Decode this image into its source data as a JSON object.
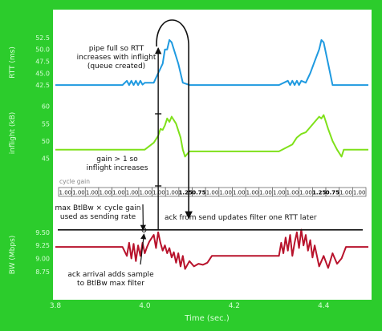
{
  "theme": {
    "frame_bg": "#2ccc2c",
    "panel_bg": "#ffffff",
    "axis_text": "#d8ffd8",
    "rtt_color": "#1f9ae0",
    "inflight_color": "#7fe11a",
    "bw_color": "#b8132c",
    "annotation_color": "#111111"
  },
  "chart_data": [
    {
      "type": "line",
      "panel": "rtt",
      "ylabel": "RTT (ms)",
      "yticks": [
        42.5,
        45.0,
        47.5,
        50.0,
        52.5
      ],
      "ylim": [
        40.5,
        54
      ],
      "series": [
        {
          "color": "#1f9ae0",
          "x": [
            3.8,
            3.95,
            3.96,
            3.965,
            3.97,
            3.975,
            3.98,
            3.985,
            3.99,
            3.995,
            4.0,
            4.01,
            4.02,
            4.03,
            4.04,
            4.045,
            4.05,
            4.055,
            4.06,
            4.075,
            4.085,
            4.1,
            4.3,
            4.32,
            4.325,
            4.33,
            4.335,
            4.34,
            4.345,
            4.35,
            4.36,
            4.37,
            4.38,
            4.39,
            4.395,
            4.4,
            4.41,
            4.42,
            4.5
          ],
          "y": [
            42.5,
            42.5,
            43.4,
            42.5,
            43.4,
            42.5,
            43.4,
            42.5,
            43.4,
            42.6,
            43.0,
            43.0,
            43.0,
            45.0,
            47.0,
            50.0,
            50.0,
            52.0,
            51.5,
            47.0,
            43.0,
            42.5,
            42.5,
            43.4,
            42.5,
            43.4,
            42.5,
            43.4,
            42.5,
            43.4,
            43.0,
            45.0,
            47.5,
            50.0,
            52.0,
            51.5,
            47.0,
            42.5,
            42.5
          ]
        }
      ]
    },
    {
      "type": "line",
      "panel": "inflight",
      "ylabel": "inflight (kB)",
      "yticks": [
        45,
        50,
        55,
        60
      ],
      "ylim": [
        43.5,
        62
      ],
      "series": [
        {
          "color": "#7fe11a",
          "x": [
            3.8,
            4.0,
            4.02,
            4.025,
            4.03,
            4.035,
            4.04,
            4.045,
            4.05,
            4.055,
            4.06,
            4.07,
            4.08,
            4.085,
            4.09,
            4.1,
            4.3,
            4.33,
            4.34,
            4.35,
            4.36,
            4.37,
            4.38,
            4.39,
            4.395,
            4.4,
            4.405,
            4.41,
            4.42,
            4.43,
            4.44,
            4.445,
            4.5
          ],
          "y": [
            47.5,
            47.5,
            49.5,
            50.5,
            51.5,
            53.5,
            53.2,
            54.5,
            56.5,
            55.5,
            57.0,
            55.0,
            51.0,
            47.5,
            45.5,
            47.0,
            47.0,
            49.0,
            51.0,
            52.0,
            52.5,
            54.0,
            55.5,
            57.0,
            56.5,
            57.5,
            55.5,
            53.5,
            50.0,
            47.5,
            45.5,
            47.5,
            47.5
          ]
        }
      ]
    },
    {
      "type": "table",
      "panel": "cycle_gain",
      "label": "cycle gain",
      "values": [
        "1.00",
        "1.00",
        "1.00",
        "1.00",
        "1.00",
        "1.00",
        "1.00",
        "1.00",
        "1.00",
        "1.25",
        "0.75",
        "1.00",
        "1.00",
        "1.00",
        "1.00",
        "1.00",
        "1.00",
        "1.00",
        "1.00",
        "1.25",
        "0.75",
        "1.00",
        "1.00"
      ]
    },
    {
      "type": "line",
      "panel": "bw",
      "ylabel": "BW (Mbps)",
      "yticks": [
        8.75,
        9.0,
        9.25,
        9.5
      ],
      "ylim": [
        8.55,
        9.65
      ],
      "reference_line_y": 9.5,
      "series": [
        {
          "color": "#b8132c",
          "x": [
            3.8,
            3.95,
            3.96,
            3.965,
            3.97,
            3.975,
            3.98,
            3.985,
            3.99,
            3.995,
            4.0,
            4.005,
            4.01,
            4.02,
            4.025,
            4.03,
            4.035,
            4.04,
            4.045,
            4.05,
            4.055,
            4.06,
            4.065,
            4.07,
            4.075,
            4.08,
            4.085,
            4.09,
            4.1,
            4.11,
            4.12,
            4.13,
            4.14,
            4.15,
            4.3,
            4.305,
            4.31,
            4.315,
            4.32,
            4.325,
            4.33,
            4.335,
            4.34,
            4.345,
            4.35,
            4.355,
            4.36,
            4.365,
            4.37,
            4.375,
            4.38,
            4.39,
            4.4,
            4.41,
            4.42,
            4.43,
            4.44,
            4.45,
            4.5
          ],
          "y": [
            9.22,
            9.22,
            9.05,
            9.3,
            9.0,
            9.28,
            8.95,
            9.25,
            9.05,
            9.3,
            9.1,
            9.22,
            9.32,
            9.45,
            9.2,
            9.5,
            9.3,
            9.15,
            9.25,
            9.1,
            9.2,
            9.02,
            9.12,
            8.92,
            9.1,
            8.85,
            9.05,
            8.8,
            8.95,
            8.85,
            8.9,
            8.88,
            8.92,
            9.05,
            9.05,
            9.3,
            9.1,
            9.4,
            9.15,
            9.45,
            9.05,
            9.3,
            9.5,
            9.2,
            9.55,
            9.25,
            9.45,
            9.15,
            9.35,
            9.02,
            9.25,
            8.85,
            9.05,
            8.82,
            9.1,
            8.9,
            9.0,
            9.22,
            9.22
          ]
        }
      ]
    },
    {
      "type": "axis",
      "panel": "time",
      "xlabel": "Time (sec.)",
      "xticks": [
        3.8,
        4.0,
        4.2,
        4.4
      ],
      "xlim": [
        3.8,
        4.5
      ]
    }
  ],
  "annotations": {
    "pipe_full": [
      "pipe full so RTT",
      "increases with inflight",
      "(queue created)"
    ],
    "gain_gt_one": [
      "gain > 1 so",
      "inflight increases"
    ],
    "max_btlbw": [
      "max BtlBw × cycle gain",
      "used as sending rate"
    ],
    "ack_from_send": "ack from send updates filter one RTT later",
    "ack_arrival": [
      "ack arrival adds sample",
      "to BtlBw max filter"
    ]
  }
}
